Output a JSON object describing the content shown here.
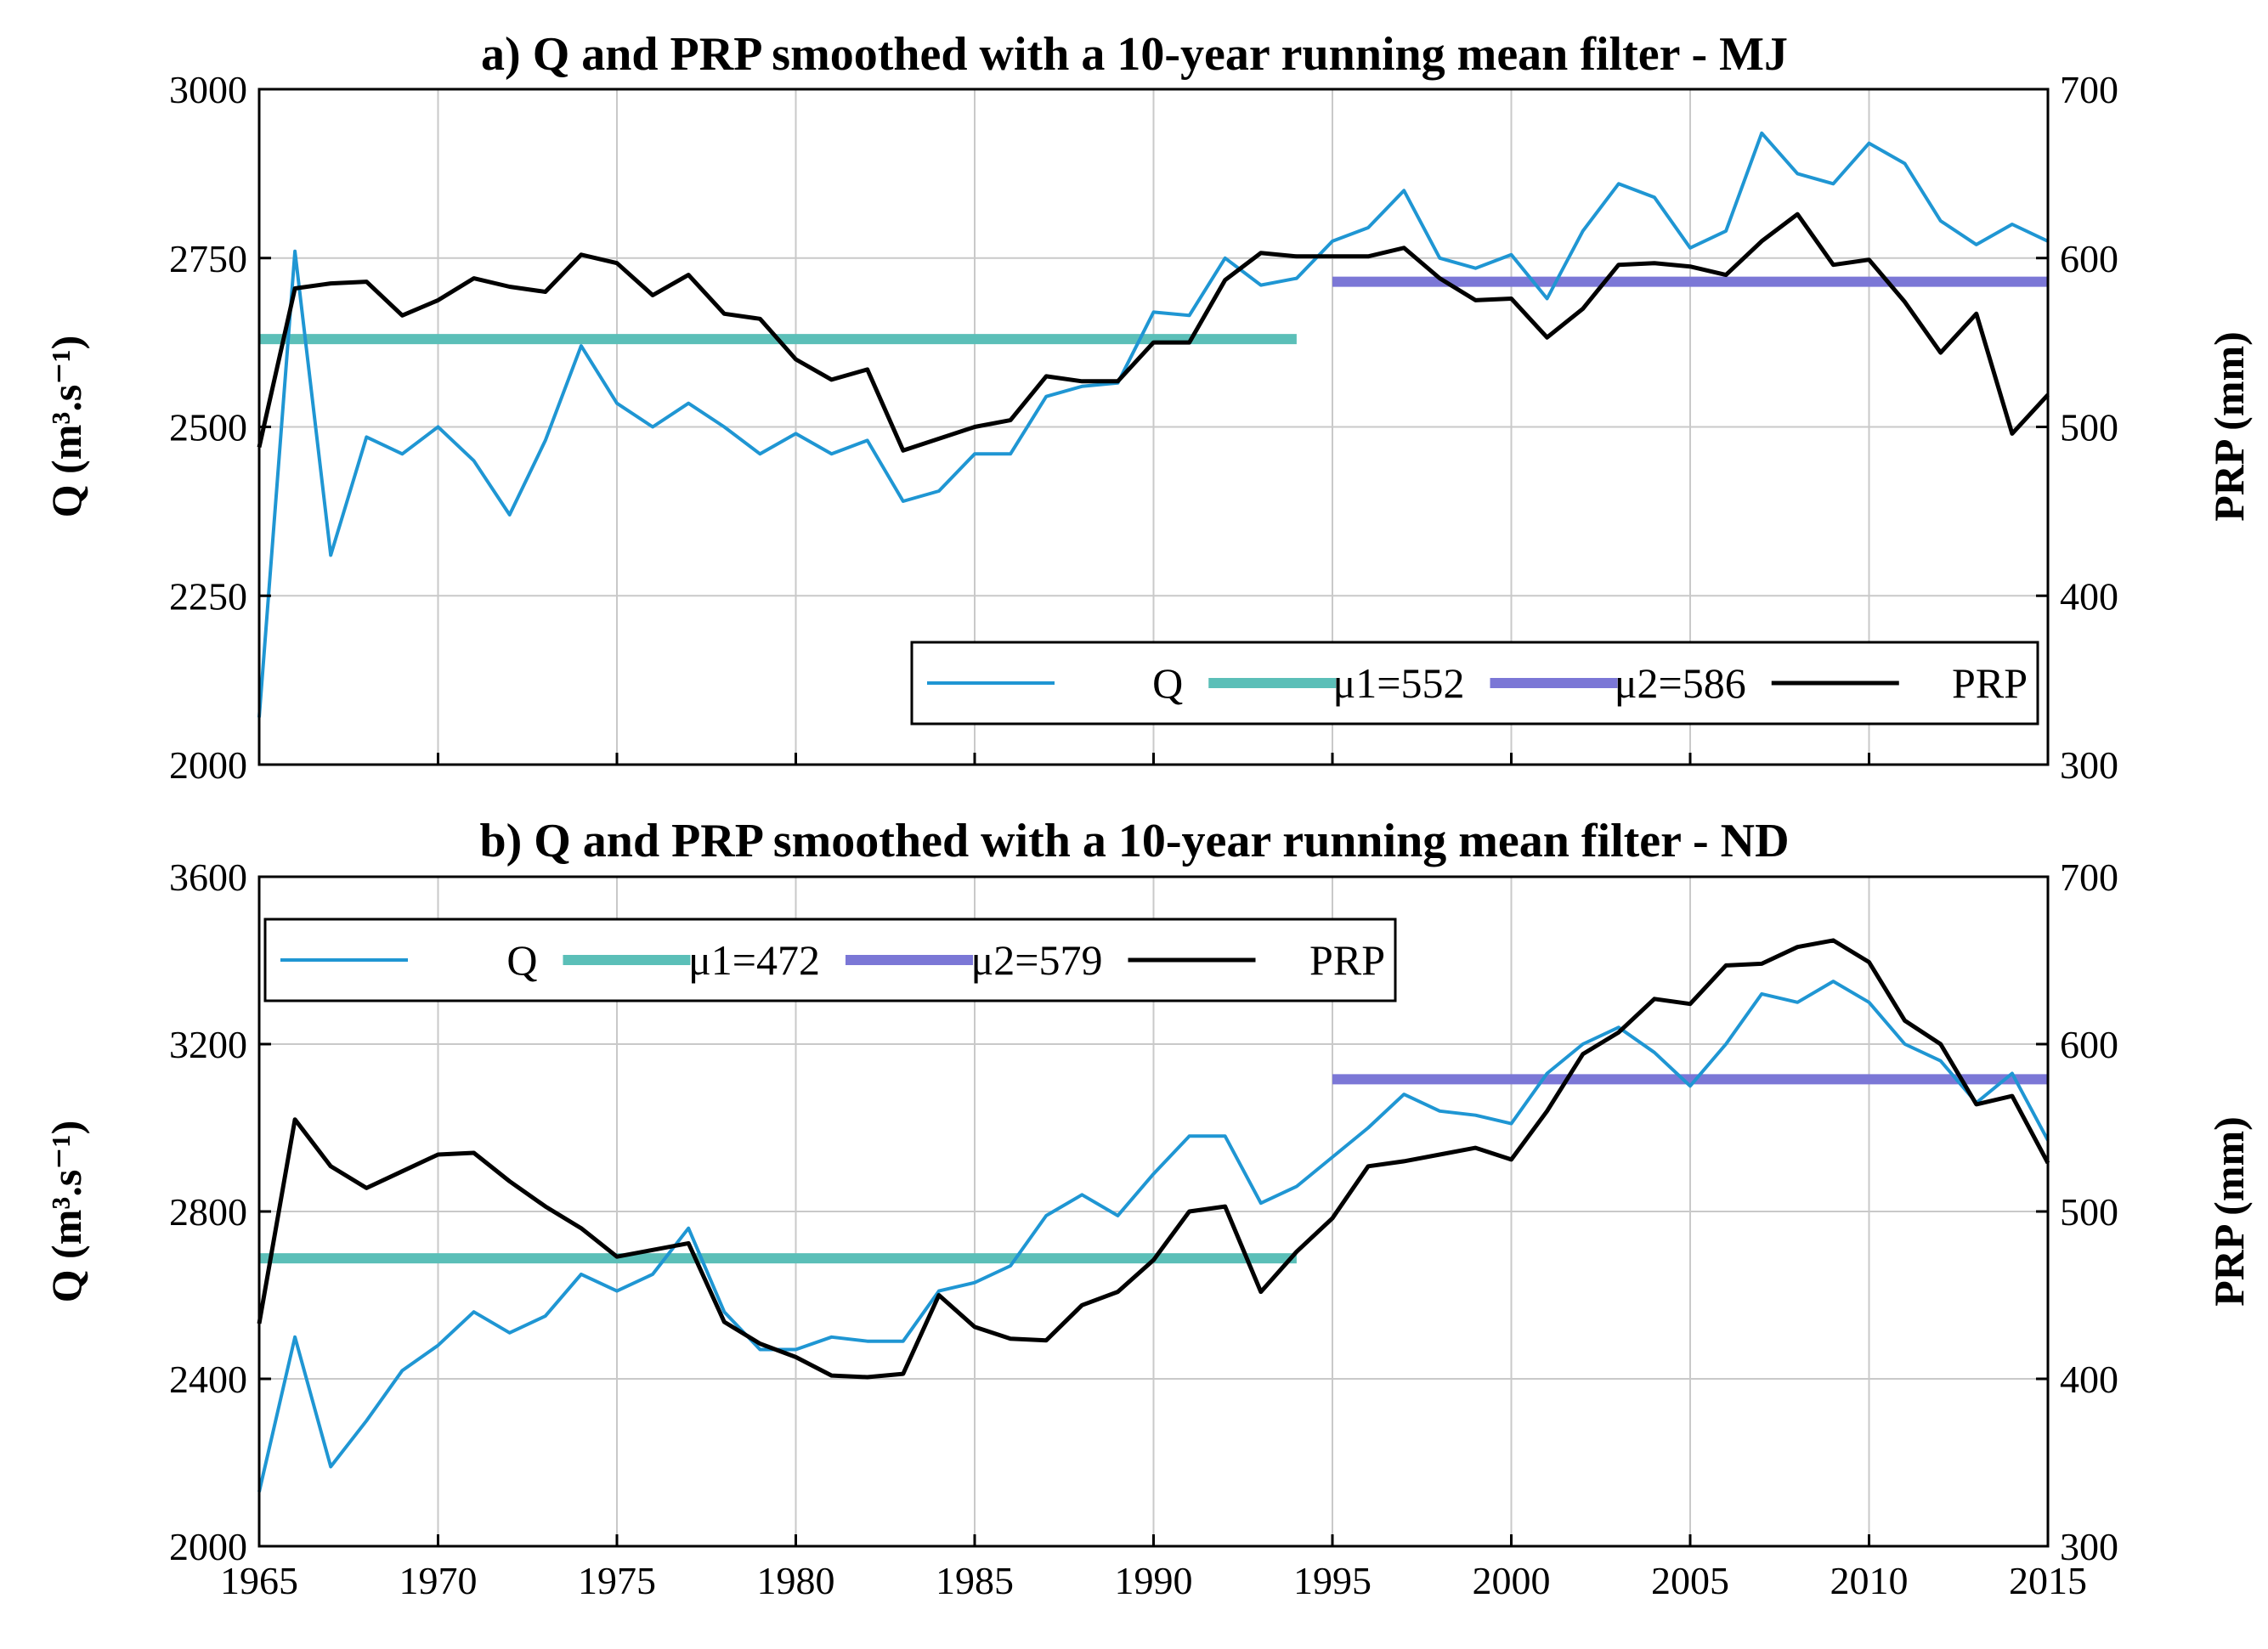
{
  "chart_data": [
    {
      "type": "line",
      "title": "a) Q and PRP smoothed with a 10-year running mean filter - MJ",
      "ylabel_left": "Q (m³.s⁻¹)",
      "ylabel_right": "PRP (mm)",
      "xlim": [
        1965,
        2015
      ],
      "ylim_left": [
        2000,
        3000
      ],
      "ylim_right": [
        300,
        700
      ],
      "xticks": [
        1965,
        1970,
        1975,
        1980,
        1985,
        1990,
        1995,
        2000,
        2005,
        2010,
        2015
      ],
      "yticks_left": [
        2000,
        2250,
        2500,
        2750,
        3000
      ],
      "yticks_right": [
        300,
        400,
        500,
        600,
        700
      ],
      "grid": true,
      "legend": {
        "placement": "bottom-right",
        "entries": [
          {
            "series": "Q",
            "label": "Q"
          },
          {
            "series": "mu1",
            "label": "μ1=552"
          },
          {
            "series": "mu2",
            "label": "μ2=586"
          },
          {
            "series": "PRP",
            "label": "PRP"
          }
        ]
      },
      "x": [
        1965,
        1966,
        1967,
        1968,
        1969,
        1970,
        1971,
        1972,
        1973,
        1974,
        1975,
        1976,
        1977,
        1978,
        1979,
        1980,
        1981,
        1982,
        1983,
        1984,
        1985,
        1986,
        1987,
        1988,
        1989,
        1990,
        1991,
        1992,
        1993,
        1994,
        1995,
        1996,
        1997,
        1998,
        1999,
        2000,
        2001,
        2002,
        2003,
        2004,
        2005,
        2006,
        2007,
        2008,
        2009,
        2010,
        2011,
        2012,
        2013,
        2014,
        2015
      ],
      "series": [
        {
          "name": "Q",
          "axis": "left",
          "color": "#1f96d3",
          "values": [
            2070,
            2760,
            2310,
            2485,
            2460,
            2500,
            2450,
            2370,
            2480,
            2620,
            2535,
            2500,
            2535,
            2500,
            2460,
            2490,
            2460,
            2480,
            2390,
            2405,
            2460,
            2460,
            2545,
            2560,
            2565,
            2670,
            2665,
            2750,
            2710,
            2720,
            2775,
            2795,
            2850,
            2750,
            2735,
            2755,
            2690,
            2790,
            2860,
            2840,
            2765,
            2790,
            2935,
            2875,
            2860,
            2920,
            2890,
            2805,
            2770,
            2800,
            2775
          ]
        },
        {
          "name": "PRP",
          "axis": "right",
          "color": "#000000",
          "values": [
            488,
            582,
            585,
            586,
            566,
            575,
            588,
            583,
            580,
            602,
            597,
            578,
            590,
            567,
            564,
            540,
            528,
            534,
            486,
            493,
            500,
            504,
            530,
            527,
            527,
            550,
            550,
            587,
            603,
            601,
            601,
            601,
            606,
            588,
            575,
            576,
            553,
            570,
            596,
            597,
            595,
            590,
            610,
            626,
            596,
            599,
            574,
            544,
            567,
            496,
            519
          ]
        },
        {
          "name": "mu1",
          "axis": "right",
          "color": "#5bbfb8",
          "value": 552,
          "x_range": [
            1965,
            1994
          ]
        },
        {
          "name": "mu2",
          "axis": "right",
          "color": "#7b77d6",
          "value": 586,
          "x_range": [
            1995,
            2015
          ]
        }
      ]
    },
    {
      "type": "line",
      "title": "b) Q and PRP smoothed with a 10-year running mean filter - ND",
      "ylabel_left": "Q (m³.s⁻¹)",
      "ylabel_right": "PRP (mm)",
      "xlim": [
        1965,
        2015
      ],
      "ylim_left": [
        2000,
        3600
      ],
      "ylim_right": [
        300,
        700
      ],
      "xticks": [
        1965,
        1970,
        1975,
        1980,
        1985,
        1990,
        1995,
        2000,
        2005,
        2010,
        2015
      ],
      "yticks_left": [
        2000,
        2400,
        2800,
        3200,
        3600
      ],
      "yticks_right": [
        300,
        400,
        500,
        600,
        700
      ],
      "grid": true,
      "legend": {
        "placement": "top-left",
        "entries": [
          {
            "series": "Q",
            "label": "Q"
          },
          {
            "series": "mu1",
            "label": "μ1=472"
          },
          {
            "series": "mu2",
            "label": "μ2=579"
          },
          {
            "series": "PRP",
            "label": "PRP"
          }
        ]
      },
      "x": [
        1965,
        1966,
        1967,
        1968,
        1969,
        1970,
        1971,
        1972,
        1973,
        1974,
        1975,
        1976,
        1977,
        1978,
        1979,
        1980,
        1981,
        1982,
        1983,
        1984,
        1985,
        1986,
        1987,
        1988,
        1989,
        1990,
        1991,
        1992,
        1993,
        1994,
        1995,
        1996,
        1997,
        1998,
        1999,
        2000,
        2001,
        2002,
        2003,
        2004,
        2005,
        2006,
        2007,
        2008,
        2009,
        2010,
        2011,
        2012,
        2013,
        2014,
        2015
      ],
      "series": [
        {
          "name": "Q",
          "axis": "left",
          "color": "#1f96d3",
          "values": [
            2130,
            2500,
            2190,
            2300,
            2420,
            2480,
            2560,
            2510,
            2550,
            2650,
            2610,
            2650,
            2760,
            2560,
            2470,
            2470,
            2500,
            2490,
            2490,
            2610,
            2630,
            2670,
            2790,
            2840,
            2790,
            2890,
            2980,
            2980,
            2820,
            2860,
            2930,
            3000,
            3080,
            3040,
            3030,
            3010,
            3130,
            3200,
            3240,
            3180,
            3100,
            3200,
            3320,
            3300,
            3350,
            3300,
            3200,
            3160,
            3060,
            3130,
            2970
          ]
        },
        {
          "name": "PRP",
          "axis": "right",
          "color": "#000000",
          "values": [
            433,
            555,
            527,
            514,
            524,
            534,
            535,
            518,
            503,
            490,
            473,
            477,
            481,
            434,
            421,
            413,
            402,
            401,
            403,
            450,
            431,
            424,
            423,
            444,
            452,
            471,
            500,
            503,
            452,
            476,
            496,
            527,
            530,
            534,
            538,
            531,
            560,
            594,
            607,
            627,
            624,
            647,
            648,
            658,
            662,
            649,
            614,
            600,
            564,
            569,
            529
          ]
        },
        {
          "name": "mu1",
          "axis": "right",
          "color": "#5bbfb8",
          "value": 472,
          "x_range": [
            1965,
            1994
          ]
        },
        {
          "name": "mu2",
          "axis": "right",
          "color": "#7b77d6",
          "value": 579,
          "x_range": [
            1995,
            2015
          ]
        }
      ]
    }
  ]
}
